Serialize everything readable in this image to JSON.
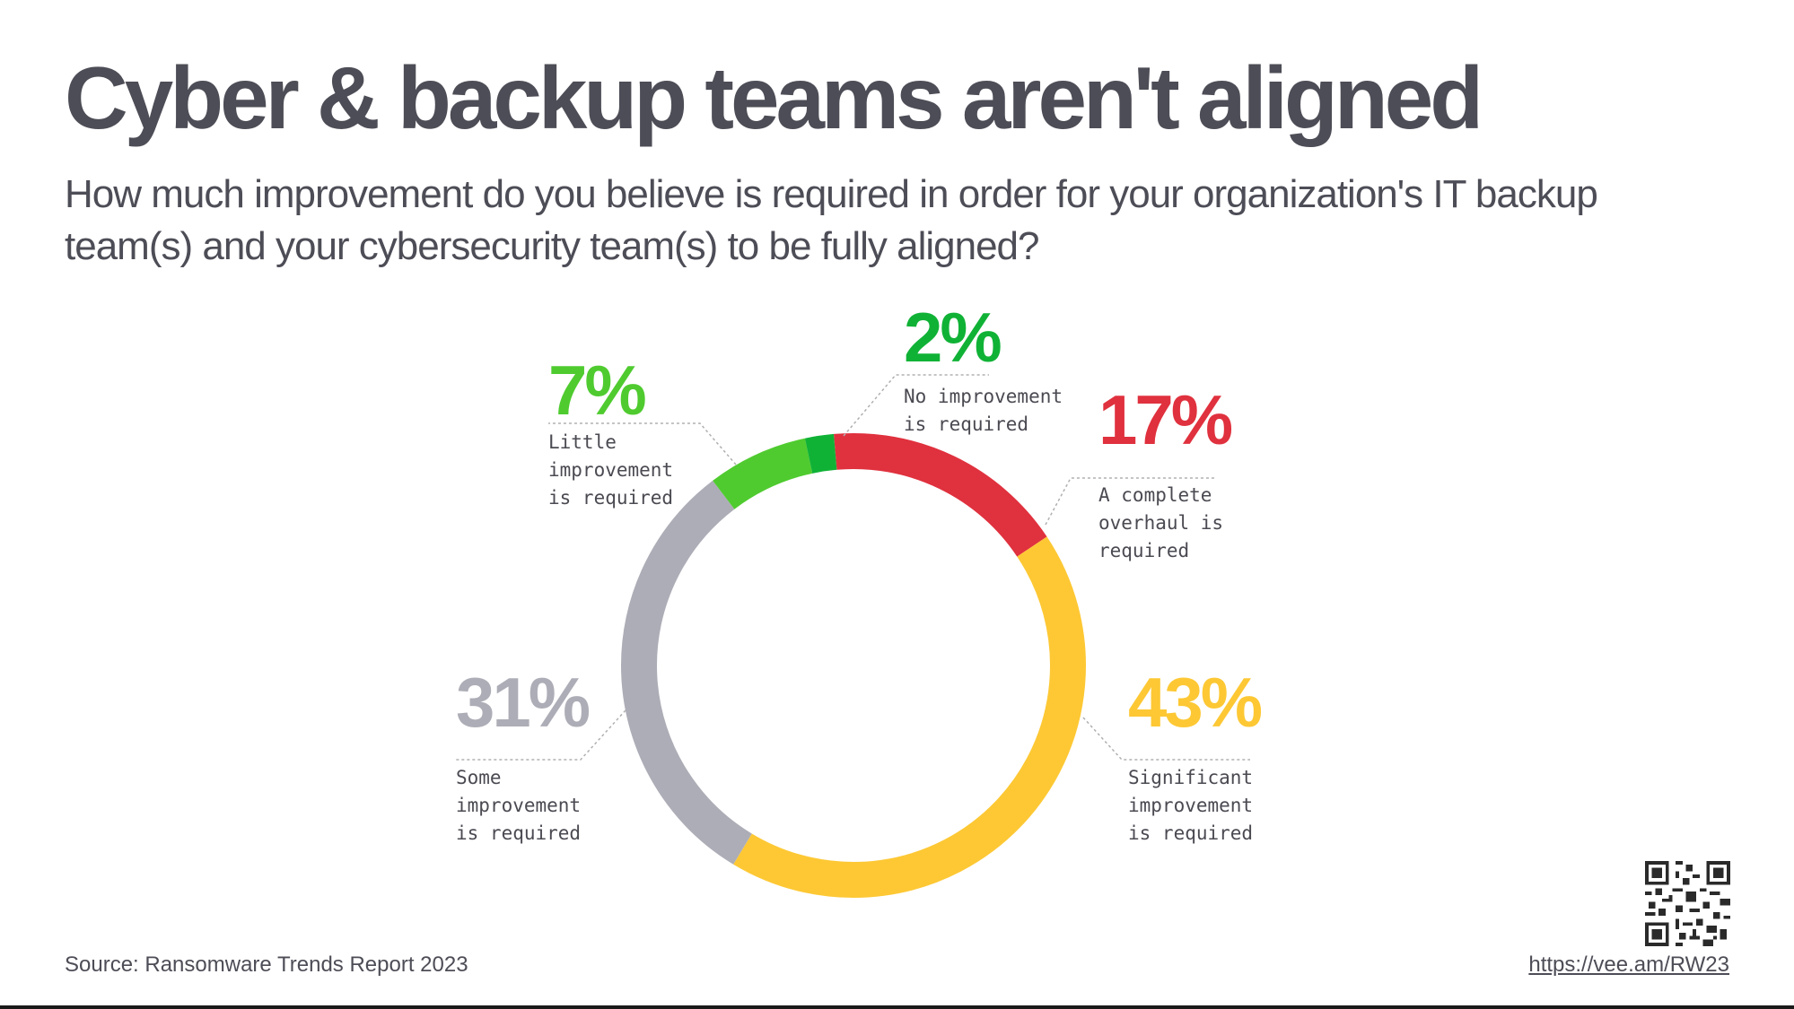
{
  "header": {
    "title": "Cyber & backup teams aren't aligned",
    "subtitle": "How much improvement do you believe is required in order for your organization's IT backup team(s) and your cybersecurity team(s) to be fully aligned?"
  },
  "chart_data": {
    "type": "pie",
    "style": "donut",
    "unit": "%",
    "slices": [
      {
        "label": "A complete overhaul is required",
        "value": 17,
        "display": "17%",
        "label_lines": [
          "A complete",
          "overhaul is",
          "required"
        ],
        "color": "#E0313E"
      },
      {
        "label": "Significant improvement is required",
        "value": 43,
        "display": "43%",
        "label_lines": [
          "Significant",
          "improvement",
          "is required"
        ],
        "color": "#FDC834"
      },
      {
        "label": "Some improvement is required",
        "value": 31,
        "display": "31%",
        "label_lines": [
          "Some",
          "improvement",
          "is required"
        ],
        "color": "#ADADB7"
      },
      {
        "label": "Little improvement is required",
        "value": 7,
        "display": "7%",
        "label_lines": [
          "Little",
          "improvement",
          "is required"
        ],
        "color": "#4FCB2F"
      },
      {
        "label": "No improvement is required",
        "value": 2,
        "display": "2%",
        "label_lines": [
          "No improvement",
          "is required"
        ],
        "color": "#10B236"
      }
    ],
    "label_color": "#4a4a52",
    "leader_color": "#b0b0b0"
  },
  "footer": {
    "source": "Source: Ransomware Trends Report 2023",
    "url": "https://vee.am/RW23"
  },
  "icons": {
    "qr": "qr-code-icon"
  }
}
